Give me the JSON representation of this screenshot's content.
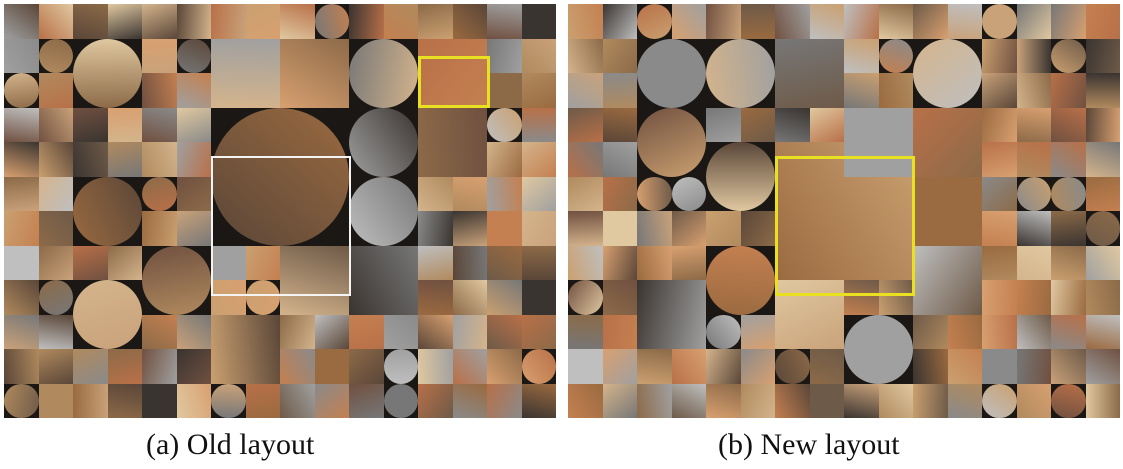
{
  "figure": {
    "panels": [
      {
        "id": "a",
        "caption": "(a) Old layout",
        "highlight_color": "#e8e020"
      },
      {
        "id": "b",
        "caption": "(b) New layout",
        "highlight_color": "#e8e020"
      }
    ]
  },
  "palette": [
    "#b08a5e",
    "#8c6a48",
    "#c9a27a",
    "#6e5a48",
    "#a0a0a0",
    "#777777",
    "#c48050",
    "#d4b48c",
    "#5a4638",
    "#bfbfbf",
    "#9a6a40",
    "#e0c8a0",
    "#3a3430",
    "#b87048",
    "#8a8a8a",
    "#d8a070",
    "#705040",
    "#caa070"
  ]
}
